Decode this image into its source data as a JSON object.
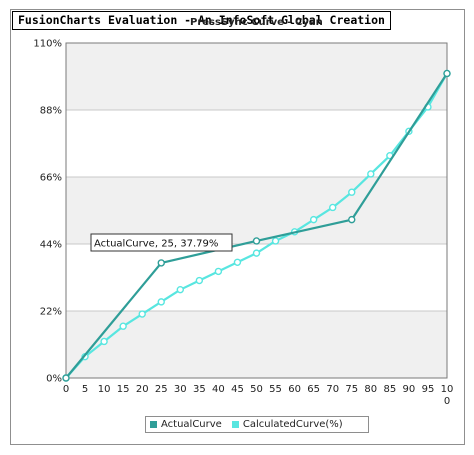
{
  "banner": "FusionCharts Evaluation - An InfoSoft Global Creation",
  "colors": {
    "actual": "#2f9e98",
    "calculated": "#58e6e0",
    "band": "#f0f0f0",
    "grid": "#c8c8c8",
    "axis": "#7a7a7a"
  },
  "tooltip": "ActualCurve, 25, 37.79%",
  "chart_data": {
    "type": "line",
    "title": "",
    "subtitle": "PressSync Curve - Cyan",
    "xlabel": "",
    "ylabel": "",
    "x": [
      0,
      5,
      10,
      15,
      20,
      25,
      30,
      35,
      40,
      45,
      50,
      55,
      60,
      65,
      70,
      75,
      80,
      85,
      90,
      95,
      100
    ],
    "x_tick_labels": [
      "0",
      "5",
      "10",
      "15",
      "20",
      "25",
      "30",
      "35",
      "40",
      "45",
      "50",
      "55",
      "60",
      "65",
      "70",
      "75",
      "80",
      "85",
      "90",
      "95",
      "100"
    ],
    "y_tick_labels": [
      "0%",
      "22%",
      "44%",
      "66%",
      "88%",
      "110%"
    ],
    "y_ticks": [
      0,
      22,
      44,
      66,
      88,
      110
    ],
    "ylim": [
      0,
      110
    ],
    "xlim": [
      0,
      100
    ],
    "grid": true,
    "legend_position": "bottom",
    "series": [
      {
        "name": "ActualCurve",
        "x": [
          0,
          25,
          50,
          75,
          100
        ],
        "values": [
          0,
          37.79,
          45,
          52,
          100
        ]
      },
      {
        "name": "CalculatedCurve(%)",
        "x": [
          0,
          5,
          10,
          15,
          20,
          25,
          30,
          35,
          40,
          45,
          50,
          55,
          60,
          65,
          70,
          75,
          80,
          85,
          90,
          95,
          100
        ],
        "values": [
          0,
          7,
          12,
          17,
          21,
          25,
          29,
          32,
          35,
          38,
          41,
          45,
          48,
          52,
          56,
          61,
          67,
          73,
          81,
          89,
          100
        ]
      }
    ]
  }
}
